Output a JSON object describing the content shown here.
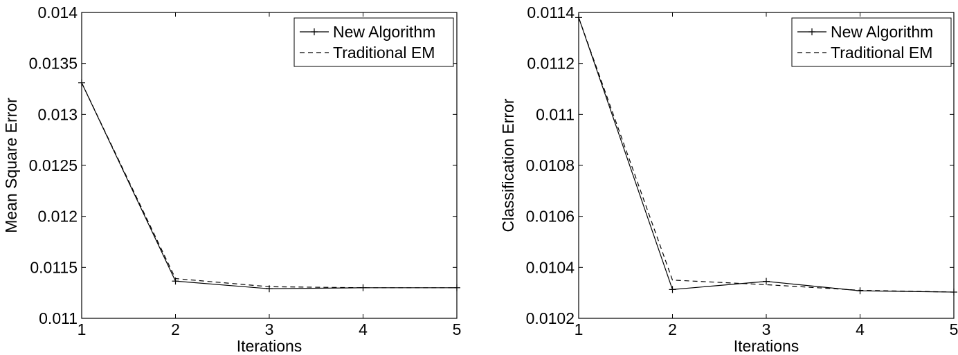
{
  "chart_data": [
    {
      "type": "line",
      "xlabel": "Iterations",
      "ylabel": "Mean Square Error",
      "xlim": [
        1,
        5
      ],
      "ylim": [
        0.011,
        0.014
      ],
      "xticks": [
        "1",
        "2",
        "3",
        "4",
        "5"
      ],
      "yticks": [
        "0.011",
        "0.0115",
        "0.012",
        "0.0125",
        "0.013",
        "0.0135",
        "0.014"
      ],
      "x": [
        1,
        2,
        3,
        4,
        5
      ],
      "legend_position": "top-right",
      "grid": false,
      "series": [
        {
          "name": "New Algorithm",
          "values": [
            0.01331,
            0.011365,
            0.01129,
            0.0113,
            0.0113
          ],
          "style": "solid",
          "marker": "plus",
          "color": "#000000"
        },
        {
          "name": "Traditional EM",
          "values": [
            0.01331,
            0.01139,
            0.01131,
            0.0113,
            0.0113
          ],
          "style": "dashed",
          "marker": "none",
          "color": "#000000"
        }
      ]
    },
    {
      "type": "line",
      "xlabel": "Iterations",
      "ylabel": "Classification Error",
      "xlim": [
        1,
        5
      ],
      "ylim": [
        0.0102,
        0.0114
      ],
      "xticks": [
        "1",
        "2",
        "3",
        "4",
        "5"
      ],
      "yticks": [
        "0.0102",
        "0.0104",
        "0.0106",
        "0.0108",
        "0.011",
        "0.0112",
        "0.0114"
      ],
      "x": [
        1,
        2,
        3,
        4,
        5
      ],
      "legend_position": "top-right",
      "grid": false,
      "series": [
        {
          "name": "New Algorithm",
          "values": [
            0.01138,
            0.010313,
            0.010345,
            0.010308,
            0.010303
          ],
          "style": "solid",
          "marker": "plus",
          "color": "#000000"
        },
        {
          "name": "Traditional EM",
          "values": [
            0.01138,
            0.01035,
            0.010332,
            0.01031,
            0.010303
          ],
          "style": "dashed",
          "marker": "none",
          "color": "#000000"
        }
      ]
    }
  ]
}
